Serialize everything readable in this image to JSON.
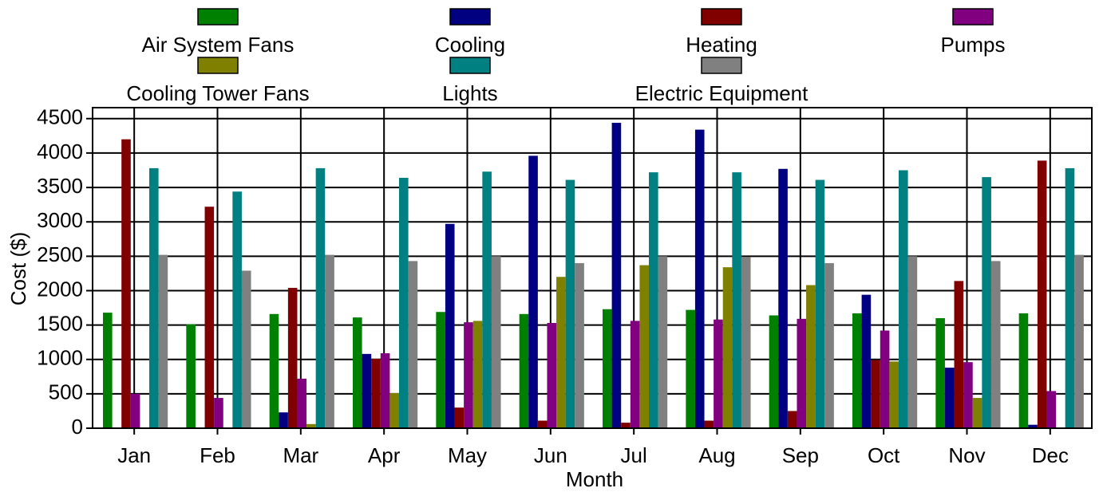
{
  "chart_data": {
    "type": "bar",
    "x_label": "Month",
    "y_label": "Cost ($)",
    "categories": [
      "Jan",
      "Feb",
      "Mar",
      "Apr",
      "May",
      "Jun",
      "Jul",
      "Aug",
      "Sep",
      "Oct",
      "Nov",
      "Dec"
    ],
    "series": [
      {
        "name": "Air System Fans",
        "color": "#008000",
        "values": [
          1680,
          1510,
          1660,
          1610,
          1690,
          1660,
          1730,
          1720,
          1640,
          1670,
          1600,
          1670
        ]
      },
      {
        "name": "Cooling",
        "color": "#000080",
        "values": [
          0,
          0,
          230,
          1080,
          2970,
          3960,
          4440,
          4340,
          3770,
          1940,
          880,
          50
        ]
      },
      {
        "name": "Heating",
        "color": "#800000",
        "values": [
          4200,
          3220,
          2040,
          1010,
          300,
          110,
          80,
          110,
          250,
          990,
          2140,
          3890
        ]
      },
      {
        "name": "Pumps",
        "color": "#800080",
        "values": [
          500,
          440,
          720,
          1090,
          1540,
          1530,
          1560,
          1580,
          1590,
          1420,
          960,
          540
        ]
      },
      {
        "name": "Cooling Tower Fans",
        "color": "#808000",
        "values": [
          0,
          0,
          60,
          510,
          1560,
          2200,
          2370,
          2340,
          2080,
          970,
          440,
          0
        ]
      },
      {
        "name": "Lights",
        "color": "#008080",
        "values": [
          3780,
          3440,
          3780,
          3640,
          3730,
          3610,
          3720,
          3720,
          3610,
          3750,
          3650,
          3780
        ]
      },
      {
        "name": "Electric Equipment",
        "color": "#808080",
        "values": [
          2520,
          2290,
          2520,
          2430,
          2500,
          2400,
          2500,
          2490,
          2400,
          2500,
          2430,
          2520
        ]
      }
    ],
    "ylim": [
      0,
      4660
    ],
    "yticks": [
      0,
      500,
      1000,
      1500,
      2000,
      2500,
      3000,
      3500,
      4000,
      4500
    ],
    "grid": true
  }
}
